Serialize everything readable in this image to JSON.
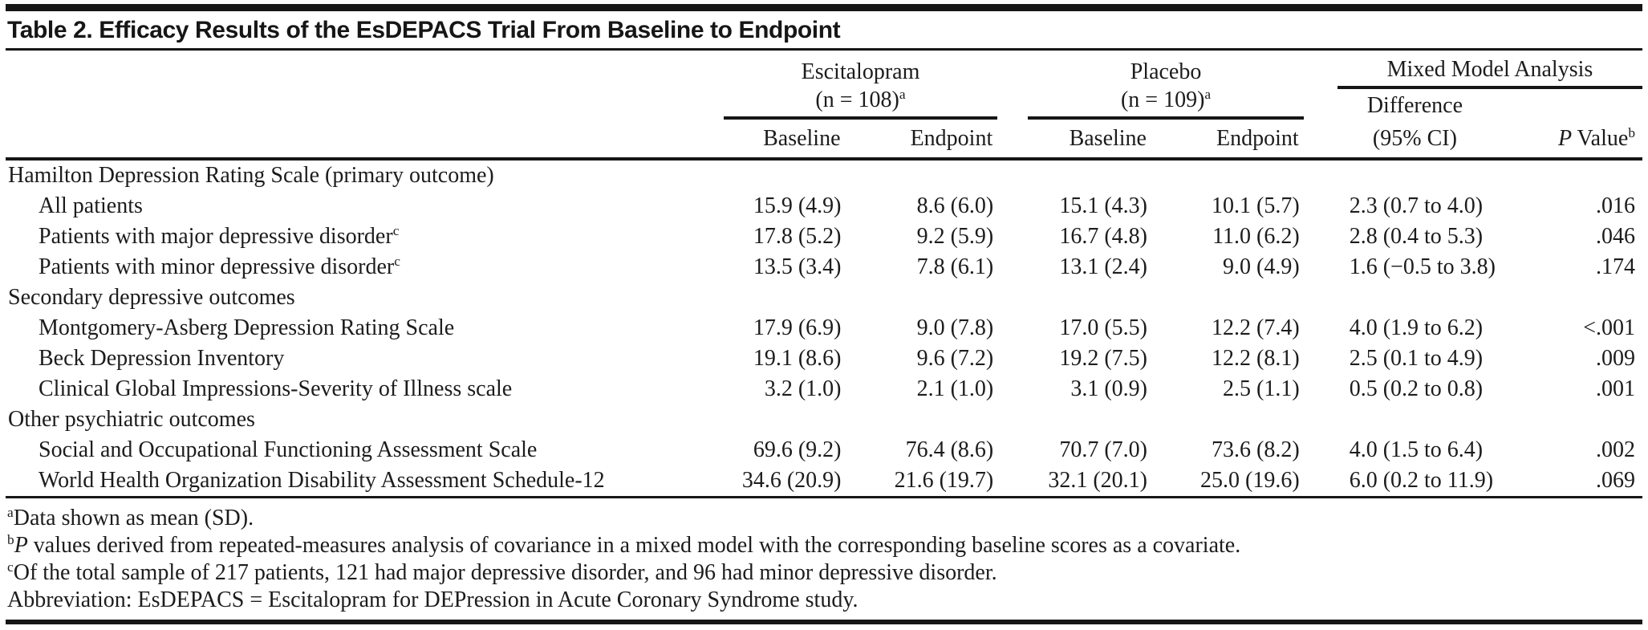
{
  "title": "Table 2. Efficacy Results of the EsDEPACS Trial From Baseline to Endpoint",
  "header": {
    "groups": [
      {
        "line1": "Escitalopram",
        "line2": "(n = 108)",
        "marker": "a"
      },
      {
        "line1": "Placebo",
        "line2": "(n = 109)",
        "marker": "a"
      },
      {
        "line1": "Mixed Model Analysis"
      }
    ],
    "sub_columns": [
      "Baseline",
      "Endpoint",
      "Baseline",
      "Endpoint"
    ],
    "difference": {
      "line1": "Difference",
      "line2": "(95% CI)"
    },
    "p_value": {
      "italic": "P",
      "rest": " Value",
      "marker": "b"
    }
  },
  "rows": [
    {
      "type": "section",
      "label": "Hamilton Depression Rating Scale (primary outcome)",
      "marker": "",
      "cells": [
        "",
        "",
        "",
        "",
        "",
        ""
      ]
    },
    {
      "type": "item",
      "label": "All patients",
      "marker": "",
      "cells": [
        "15.9 (4.9)",
        "8.6 (6.0)",
        "15.1 (4.3)",
        "10.1 (5.7)",
        "2.3 (0.7 to 4.0)",
        ".016"
      ]
    },
    {
      "type": "item",
      "label": "Patients with major depressive disorder",
      "marker": "c",
      "cells": [
        "17.8 (5.2)",
        "9.2 (5.9)",
        "16.7 (4.8)",
        "11.0 (6.2)",
        "2.8 (0.4 to 5.3)",
        ".046"
      ]
    },
    {
      "type": "item",
      "label": "Patients with minor depressive disorder",
      "marker": "c",
      "cells": [
        "13.5 (3.4)",
        "7.8 (6.1)",
        "13.1 (2.4)",
        "9.0 (4.9)",
        "1.6 (−0.5 to 3.8)",
        ".174"
      ]
    },
    {
      "type": "section",
      "label": "Secondary depressive outcomes",
      "marker": "",
      "cells": [
        "",
        "",
        "",
        "",
        "",
        ""
      ]
    },
    {
      "type": "item",
      "label": "Montgomery-Asberg Depression Rating Scale",
      "marker": "",
      "cells": [
        "17.9 (6.9)",
        "9.0 (7.8)",
        "17.0 (5.5)",
        "12.2 (7.4)",
        "4.0 (1.9 to 6.2)",
        "<.001"
      ]
    },
    {
      "type": "item",
      "label": "Beck Depression Inventory",
      "marker": "",
      "cells": [
        "19.1 (8.6)",
        "9.6 (7.2)",
        "19.2 (7.5)",
        "12.2 (8.1)",
        "2.5 (0.1 to 4.9)",
        ".009"
      ]
    },
    {
      "type": "item",
      "label": "Clinical Global Impressions-Severity of Illness scale",
      "marker": "",
      "cells": [
        "3.2 (1.0)",
        "2.1 (1.0)",
        "3.1 (0.9)",
        "2.5 (1.1)",
        "0.5 (0.2 to 0.8)",
        ".001"
      ]
    },
    {
      "type": "section",
      "label": "Other psychiatric outcomes",
      "marker": "",
      "cells": [
        "",
        "",
        "",
        "",
        "",
        ""
      ]
    },
    {
      "type": "item",
      "label": "Social and Occupational Functioning Assessment Scale",
      "marker": "",
      "cells": [
        "69.6 (9.2)",
        "76.4 (8.6)",
        "70.7 (7.0)",
        "73.6 (8.2)",
        "4.0 (1.5 to 6.4)",
        ".002"
      ]
    },
    {
      "type": "item",
      "label": "World Health Organization Disability Assessment Schedule-12",
      "marker": "",
      "cells": [
        "34.6 (20.9)",
        "21.6 (19.7)",
        "32.1 (20.1)",
        "25.0 (19.6)",
        "6.0 (0.2 to 11.9)",
        ".069"
      ]
    }
  ],
  "footnotes": [
    {
      "marker": "a",
      "lead_italic": "",
      "text": "Data shown as mean (SD)."
    },
    {
      "marker": "b",
      "lead_italic": "P",
      "text": " values derived from repeated-measures analysis of covariance in a mixed model with the corresponding baseline scores as a covariate."
    },
    {
      "marker": "c",
      "lead_italic": "",
      "text": "Of the total sample of 217 patients, 121 had major depressive disorder, and 96 had minor depressive disorder."
    },
    {
      "marker": "",
      "lead_italic": "",
      "text": "Abbreviation: EsDEPACS = Escitalopram for DEPression in Acute Coronary Syndrome study."
    }
  ],
  "colors": {
    "background": "#ffffff",
    "text": "#1c1c1c",
    "rule": "#161616"
  }
}
